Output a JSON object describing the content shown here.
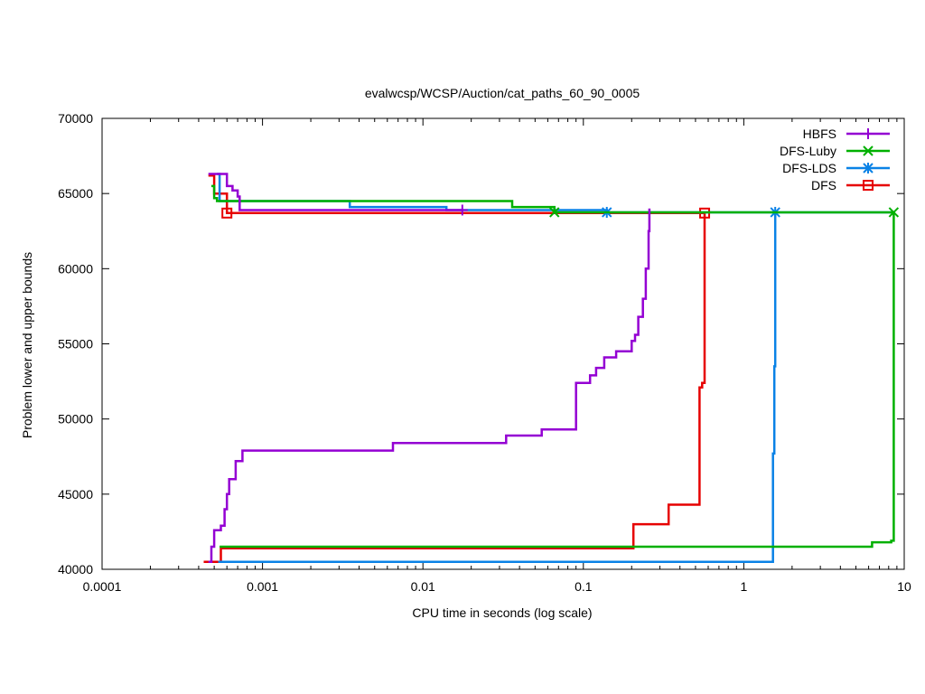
{
  "chart_data": {
    "type": "line",
    "title": "evalwcsp/WCSP/Auction/cat_paths_60_90_0005",
    "xlabel": "CPU time in seconds (log scale)",
    "ylabel": "Problem lower and upper bounds",
    "xscale": "log",
    "xlim": [
      0.0001,
      10
    ],
    "ylim": [
      40000,
      70000
    ],
    "grid": false,
    "legend_position": "top-right",
    "xticks": [
      {
        "value": 0.0001,
        "label": "0.0001"
      },
      {
        "value": 0.001,
        "label": "0.001"
      },
      {
        "value": 0.01,
        "label": "0.01"
      },
      {
        "value": 0.1,
        "label": "0.1"
      },
      {
        "value": 1,
        "label": "1"
      },
      {
        "value": 10,
        "label": "10"
      }
    ],
    "yticks": [
      {
        "value": 40000,
        "label": "40000"
      },
      {
        "value": 45000,
        "label": "45000"
      },
      {
        "value": 50000,
        "label": "50000"
      },
      {
        "value": 55000,
        "label": "55000"
      },
      {
        "value": 60000,
        "label": "60000"
      },
      {
        "value": 65000,
        "label": "65000"
      },
      {
        "value": 70000,
        "label": "70000"
      }
    ],
    "series": [
      {
        "name": "HBFS",
        "color": "#9400d3",
        "marker": "plus",
        "upper_bound": [
          [
            0.00046,
            66300
          ],
          [
            0.0006,
            65500
          ],
          [
            0.00065,
            65200
          ],
          [
            0.0007,
            64800
          ],
          [
            0.00072,
            63900
          ],
          [
            0.0176,
            63900
          ]
        ],
        "upper_markers": [
          [
            0.0176,
            63900
          ]
        ],
        "lower_bound": [
          [
            0.00046,
            40500
          ],
          [
            0.00048,
            41500
          ],
          [
            0.0005,
            42600
          ],
          [
            0.00055,
            42900
          ],
          [
            0.00058,
            44000
          ],
          [
            0.0006,
            45000
          ],
          [
            0.00062,
            46000
          ],
          [
            0.00068,
            47200
          ],
          [
            0.00075,
            47900
          ],
          [
            0.0065,
            48400
          ],
          [
            0.033,
            48900
          ],
          [
            0.055,
            49300
          ],
          [
            0.09,
            52400
          ],
          [
            0.11,
            52900
          ],
          [
            0.12,
            53400
          ],
          [
            0.135,
            54100
          ],
          [
            0.16,
            54500
          ],
          [
            0.2,
            55200
          ],
          [
            0.21,
            55600
          ],
          [
            0.22,
            56800
          ],
          [
            0.235,
            58000
          ],
          [
            0.245,
            60000
          ],
          [
            0.255,
            62500
          ],
          [
            0.258,
            64000
          ]
        ],
        "lower_markers": []
      },
      {
        "name": "DFS-Luby",
        "color": "#00b000",
        "marker": "x",
        "upper_bound": [
          [
            0.00048,
            65500
          ],
          [
            0.0005,
            64700
          ],
          [
            0.00052,
            64500
          ],
          [
            0.036,
            64100
          ],
          [
            0.066,
            63750
          ],
          [
            8.6,
            63750
          ]
        ],
        "upper_markers": [
          [
            0.066,
            63750
          ],
          [
            8.6,
            63750
          ]
        ],
        "lower_bound": [
          [
            0.00054,
            41500
          ],
          [
            6.3,
            41800
          ],
          [
            8.3,
            41900
          ],
          [
            8.6,
            63700
          ]
        ],
        "lower_markers": []
      },
      {
        "name": "DFS-LDS",
        "color": "#0a82e6",
        "marker": "star",
        "upper_bound": [
          [
            0.00052,
            66300
          ],
          [
            0.00054,
            64500
          ],
          [
            0.0035,
            64100
          ],
          [
            0.014,
            63900
          ],
          [
            0.14,
            63750
          ],
          [
            1.57,
            63750
          ],
          [
            8.6,
            63700
          ]
        ],
        "upper_markers": [
          [
            0.14,
            63750
          ],
          [
            1.57,
            63750
          ]
        ],
        "lower_bound": [
          [
            0.00053,
            40500
          ],
          [
            1.5,
            40500
          ],
          [
            1.52,
            47700
          ],
          [
            1.55,
            53500
          ],
          [
            1.57,
            63700
          ]
        ],
        "lower_markers": []
      },
      {
        "name": "DFS",
        "color": "#e60000",
        "marker": "square",
        "upper_bound": [
          [
            0.00046,
            66200
          ],
          [
            0.0005,
            65000
          ],
          [
            0.0006,
            63700
          ],
          [
            0.57,
            63700
          ]
        ],
        "upper_markers": [
          [
            0.0006,
            63700
          ],
          [
            0.57,
            63700
          ]
        ],
        "lower_bound": [
          [
            0.00043,
            40500
          ],
          [
            0.00053,
            40500
          ],
          [
            0.00055,
            41400
          ],
          [
            0.2,
            41400
          ],
          [
            0.205,
            43000
          ],
          [
            0.34,
            44300
          ],
          [
            0.53,
            52100
          ],
          [
            0.55,
            52400
          ],
          [
            0.57,
            63700
          ]
        ],
        "lower_markers": []
      }
    ]
  }
}
